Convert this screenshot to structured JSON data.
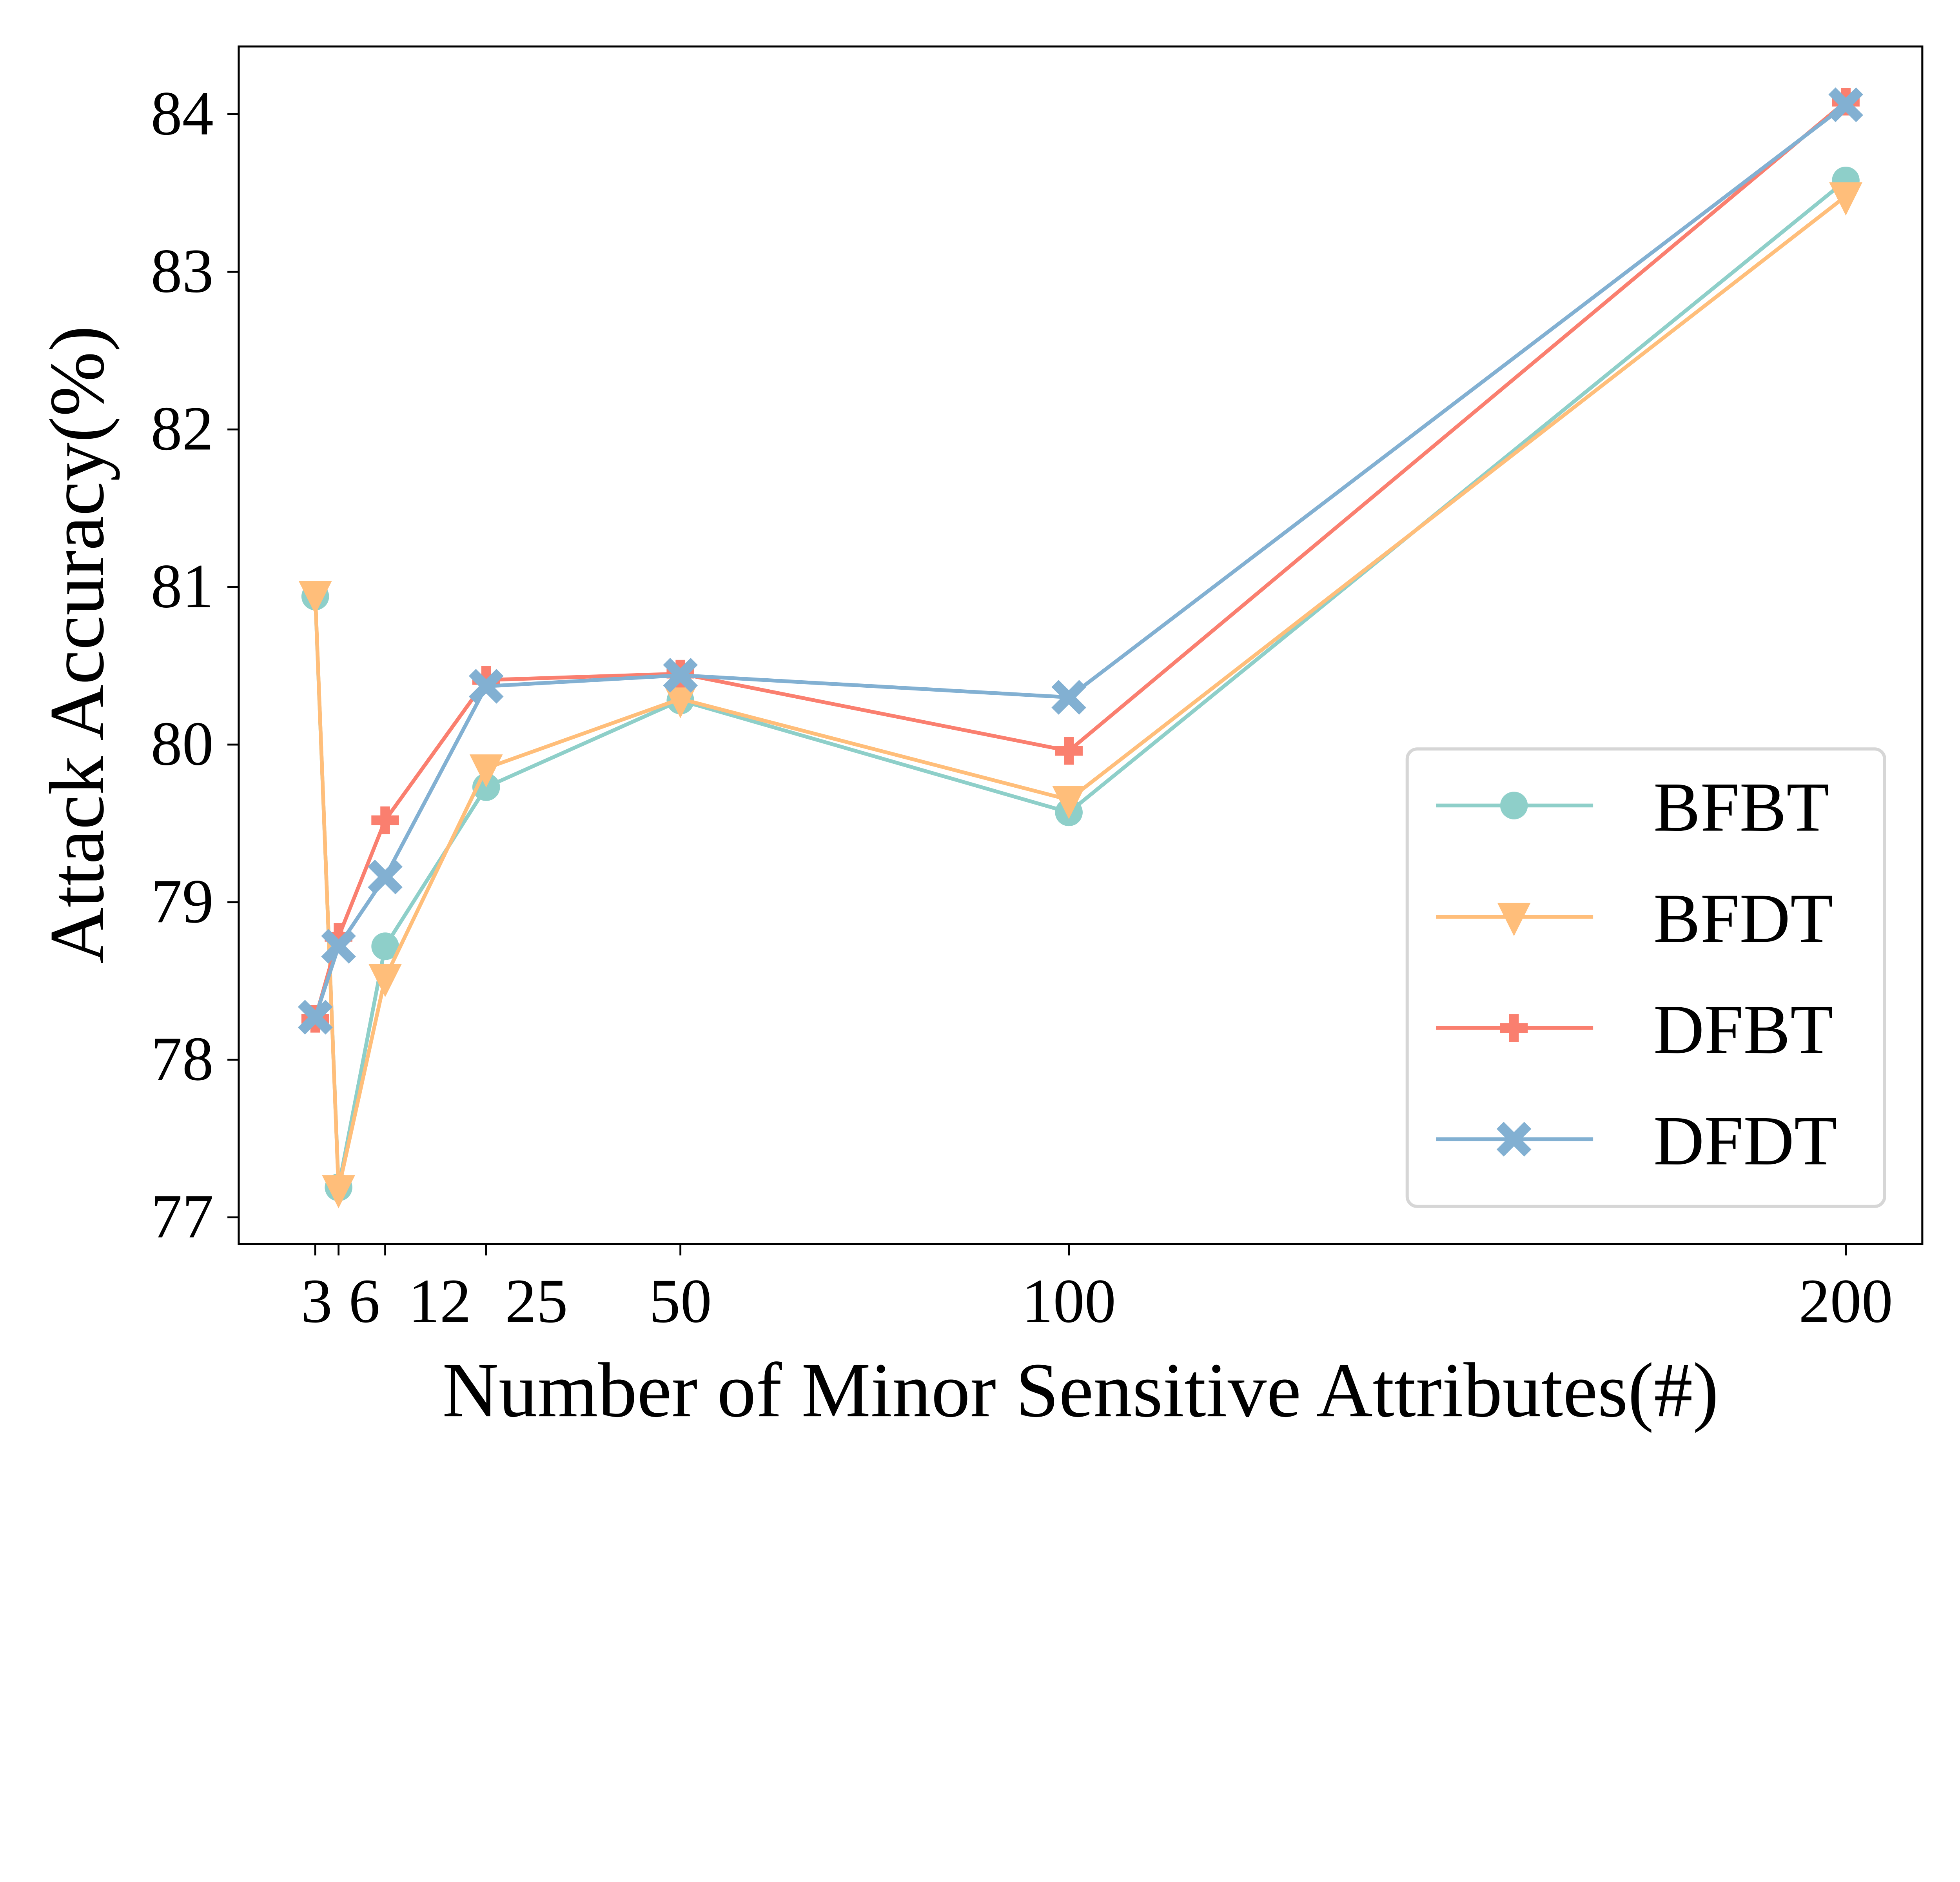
{
  "chart_data": {
    "type": "line",
    "xlabel": "Number of Minor Sensitive Attributes(#)",
    "ylabel": "Attack Accuracy(%)",
    "x": [
      3,
      6,
      12,
      25,
      50,
      100,
      200
    ],
    "x_ticks": [
      3,
      6,
      12,
      25,
      50,
      100,
      200
    ],
    "y_ticks": [
      77,
      78,
      79,
      80,
      81,
      82,
      83,
      84
    ],
    "xlim": [
      -6.85,
      209.85
    ],
    "ylim": [
      76.83,
      84.43
    ],
    "grid": false,
    "legend_position": "bottom-right",
    "series": [
      {
        "name": "BFBT",
        "color": "#8ecfc9",
        "marker": "circle",
        "values": [
          80.94,
          77.19,
          78.72,
          79.73,
          80.28,
          79.57,
          83.58
        ]
      },
      {
        "name": "BFDT",
        "color": "#ffbe7a",
        "marker": "triangle-down",
        "values": [
          80.95,
          77.18,
          78.52,
          79.85,
          80.29,
          79.65,
          83.48
        ]
      },
      {
        "name": "DFBT",
        "color": "#fa7f6f",
        "marker": "plus",
        "values": [
          78.26,
          78.78,
          79.52,
          80.41,
          80.45,
          79.96,
          84.08
        ]
      },
      {
        "name": "DFDT",
        "color": "#82b0d2",
        "marker": "x",
        "values": [
          78.27,
          78.72,
          79.16,
          80.37,
          80.44,
          80.3,
          84.06
        ]
      }
    ]
  }
}
